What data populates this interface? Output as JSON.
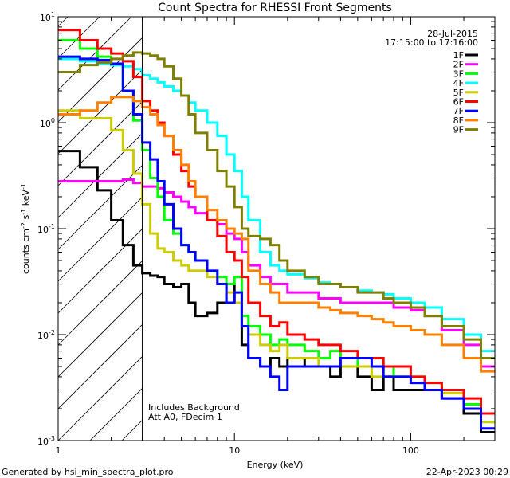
{
  "chart_data": {
    "type": "line",
    "title": "Count Spectra for RHESSI Front Segments",
    "xlabel": "Energy (keV)",
    "ylabel": "counts cm-2 s-1 keV-1",
    "xscale": "log",
    "yscale": "log",
    "xlim": [
      1,
      300
    ],
    "ylim": [
      0.001,
      10
    ],
    "x_ticks": [
      {
        "value": 1,
        "label": "1"
      },
      {
        "value": 10,
        "label": "10"
      },
      {
        "value": 100,
        "label": "100"
      }
    ],
    "y_ticks": [
      {
        "value": 10,
        "base": "10",
        "exp": "1"
      },
      {
        "value": 1,
        "base": "10",
        "exp": "0"
      },
      {
        "value": 0.1,
        "base": "10",
        "exp": "-1"
      },
      {
        "value": 0.01,
        "base": "10",
        "exp": "-2"
      },
      {
        "value": 0.001,
        "base": "10",
        "exp": "-3"
      }
    ],
    "excluded_region_keV": [
      1,
      3
    ],
    "legend_placement": "top-right",
    "legend_date": "28-Jul-2015",
    "legend_time": "17:15:00 to 17:16:00",
    "annotations": [
      "Includes Background",
      "Att A0, FDecim 1"
    ],
    "energy_edges": [
      1.0,
      1.33,
      1.67,
      2.0,
      2.33,
      2.67,
      3.0,
      3.33,
      3.67,
      4.0,
      4.5,
      5,
      5.5,
      6,
      7,
      8,
      9,
      10,
      11,
      12,
      14,
      16,
      18,
      20,
      25,
      30,
      35,
      40,
      50,
      60,
      70,
      80,
      100,
      120,
      150,
      200,
      250,
      300
    ],
    "series": [
      {
        "name": "1F",
        "color": "#000000",
        "values": [
          0.54,
          0.38,
          0.23,
          0.12,
          0.07,
          0.045,
          0.038,
          0.036,
          0.035,
          0.03,
          0.028,
          0.03,
          0.02,
          0.015,
          0.016,
          0.02,
          0.03,
          0.02,
          0.008,
          0.006,
          0.005,
          0.006,
          0.005,
          0.006,
          0.005,
          0.005,
          0.004,
          0.005,
          0.004,
          0.003,
          0.004,
          0.003,
          0.003,
          0.003,
          0.0025,
          0.0018,
          0.0012
        ]
      },
      {
        "name": "2F",
        "color": "#ff00ff",
        "values": [
          0.28,
          0.28,
          0.28,
          0.28,
          0.29,
          0.27,
          0.25,
          0.25,
          0.24,
          0.22,
          0.2,
          0.18,
          0.16,
          0.14,
          0.12,
          0.11,
          0.09,
          0.08,
          0.06,
          0.045,
          0.035,
          0.03,
          0.03,
          0.025,
          0.025,
          0.022,
          0.022,
          0.02,
          0.02,
          0.02,
          0.02,
          0.018,
          0.017,
          0.015,
          0.011,
          0.008,
          0.005
        ]
      },
      {
        "name": "3F",
        "color": "#00ff00",
        "values": [
          6.0,
          5.0,
          4.2,
          3.5,
          2.0,
          1.05,
          0.55,
          0.3,
          0.2,
          0.12,
          0.09,
          0.07,
          0.06,
          0.05,
          0.04,
          0.035,
          0.03,
          0.035,
          0.015,
          0.012,
          0.01,
          0.008,
          0.009,
          0.008,
          0.007,
          0.006,
          0.007,
          0.006,
          0.005,
          0.005,
          0.005,
          0.004,
          0.004,
          0.0035,
          0.003,
          0.0022,
          0.0015
        ]
      },
      {
        "name": "4F",
        "color": "#00ffff",
        "values": [
          4.0,
          3.8,
          3.6,
          3.5,
          3.4,
          3.2,
          2.8,
          2.6,
          2.4,
          2.2,
          2.0,
          1.8,
          1.55,
          1.3,
          1.0,
          0.75,
          0.5,
          0.35,
          0.2,
          0.12,
          0.06,
          0.045,
          0.04,
          0.037,
          0.034,
          0.031,
          0.03,
          0.028,
          0.026,
          0.025,
          0.024,
          0.022,
          0.02,
          0.018,
          0.014,
          0.01,
          0.007
        ]
      },
      {
        "name": "5F",
        "color": "#cccc00",
        "values": [
          1.3,
          1.1,
          1.1,
          0.85,
          0.55,
          0.33,
          0.17,
          0.09,
          0.065,
          0.06,
          0.05,
          0.045,
          0.04,
          0.04,
          0.035,
          0.03,
          0.025,
          0.02,
          0.012,
          0.01,
          0.008,
          0.007,
          0.008,
          0.006,
          0.006,
          0.005,
          0.005,
          0.005,
          0.005,
          0.004,
          0.004,
          0.004,
          0.0035,
          0.003,
          0.0028,
          0.002,
          0.0015
        ]
      },
      {
        "name": "6F",
        "color": "#ff0000",
        "values": [
          7.5,
          6.0,
          5.0,
          4.5,
          3.8,
          2.7,
          1.6,
          1.3,
          1.0,
          0.75,
          0.5,
          0.35,
          0.25,
          0.2,
          0.12,
          0.085,
          0.06,
          0.05,
          0.035,
          0.02,
          0.015,
          0.012,
          0.013,
          0.01,
          0.009,
          0.008,
          0.008,
          0.007,
          0.006,
          0.006,
          0.005,
          0.005,
          0.004,
          0.0035,
          0.003,
          0.0025,
          0.0018
        ]
      },
      {
        "name": "7F",
        "color": "#0000ff",
        "values": [
          4.2,
          4.0,
          3.9,
          3.6,
          2.0,
          1.2,
          0.65,
          0.45,
          0.28,
          0.17,
          0.1,
          0.07,
          0.06,
          0.05,
          0.04,
          0.03,
          0.02,
          0.025,
          0.012,
          0.006,
          0.005,
          0.004,
          0.003,
          0.005,
          0.005,
          0.005,
          0.005,
          0.006,
          0.006,
          0.005,
          0.004,
          0.004,
          0.0035,
          0.003,
          0.0025,
          0.002,
          0.0013
        ]
      },
      {
        "name": "8F",
        "color": "#ff8000",
        "values": [
          1.2,
          1.3,
          1.55,
          1.75,
          1.75,
          1.6,
          1.4,
          1.2,
          0.95,
          0.75,
          0.55,
          0.4,
          0.28,
          0.2,
          0.15,
          0.12,
          0.1,
          0.09,
          0.08,
          0.04,
          0.03,
          0.025,
          0.02,
          0.02,
          0.02,
          0.018,
          0.017,
          0.016,
          0.015,
          0.014,
          0.013,
          0.012,
          0.011,
          0.01,
          0.008,
          0.006,
          0.0045
        ]
      },
      {
        "name": "9F",
        "color": "#808000",
        "values": [
          3.0,
          3.5,
          3.7,
          4.0,
          4.3,
          4.6,
          4.5,
          4.3,
          4.0,
          3.4,
          2.6,
          1.8,
          1.2,
          0.8,
          0.55,
          0.35,
          0.25,
          0.16,
          0.1,
          0.085,
          0.08,
          0.07,
          0.05,
          0.04,
          0.035,
          0.03,
          0.03,
          0.028,
          0.025,
          0.025,
          0.022,
          0.02,
          0.018,
          0.015,
          0.012,
          0.009,
          0.006
        ]
      }
    ]
  },
  "footer": {
    "generated_by": "Generated by hsi_min_spectra_plot.pro",
    "timestamp": "22-Apr-2023 00:29"
  }
}
